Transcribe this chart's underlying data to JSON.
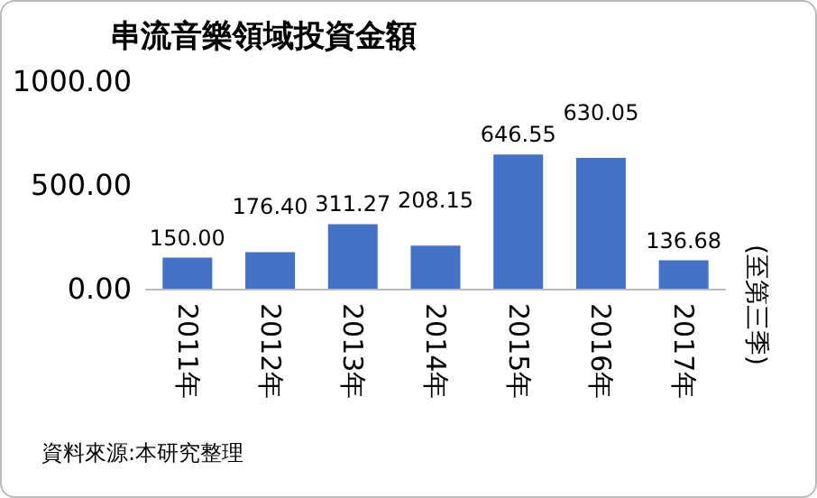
{
  "chart_data": {
    "type": "bar",
    "title": "串流音樂領域投資金額",
    "categories": [
      "2011年",
      "2012年",
      "2013年",
      "2014年",
      "2015年",
      "2016年",
      "2017年"
    ],
    "values": [
      150.0,
      176.4,
      311.27,
      208.15,
      646.55,
      630.05,
      136.68
    ],
    "value_labels": [
      "150.00",
      "176.40",
      "311.27",
      "208.15",
      "646.55",
      "630.05",
      "136.68"
    ],
    "color": "#4472c4",
    "ylim": [
      0,
      1000
    ],
    "yticks": [
      {
        "value": 0,
        "label": "0.00"
      },
      {
        "value": 500,
        "label": "500.00"
      },
      {
        "value": 1000,
        "label": "1000.00"
      }
    ],
    "annotations": [
      "(至第三季)",
      "資料來源:本研究整理"
    ]
  }
}
